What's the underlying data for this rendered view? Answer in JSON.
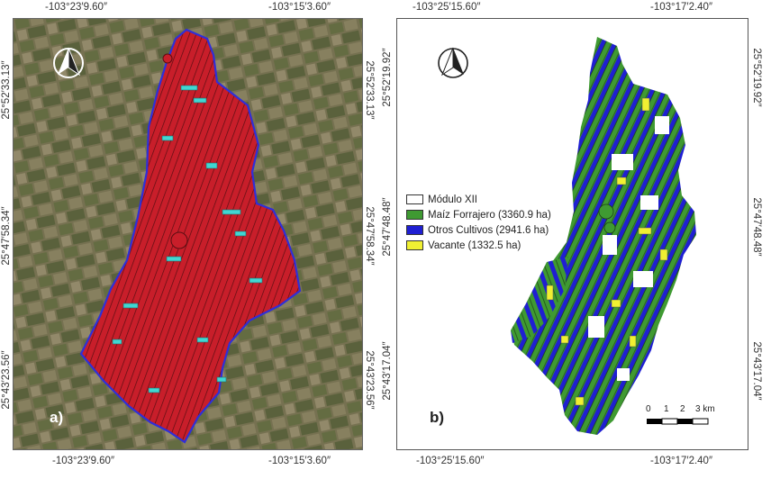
{
  "panel_a": {
    "label": "a)",
    "coords": {
      "top_left": "-103°23′9.60″",
      "top_right": "-103°15′3.60″",
      "bottom_left": "-103°23′9.60″",
      "bottom_right": "-103°15′3.60″",
      "left_upper": "25°52′33.13″",
      "left_middle": "25°47′58.34″",
      "left_lower": "25°43′23.56″",
      "right_upper": "25°52′33.13″",
      "right_middle": "25°47′58.34″",
      "right_lower": "25°43′23.56″"
    },
    "colors": {
      "boundary": "#2f2fd8",
      "parcel": "#c81e2a",
      "highlight": "#41d6d2"
    }
  },
  "panel_b": {
    "label": "b)",
    "coords": {
      "top_left": "-103°25′15.60″",
      "top_right": "-103°17′2.40″",
      "bottom_left": "-103°25′15.60″",
      "bottom_right": "-103°17′2.40″",
      "left_upper": "25°52′19.92″",
      "left_middle": "25°47′48.48″",
      "left_lower": "25°43′17.04″",
      "right_upper": "25°52′19.92″",
      "right_middle": "25°47′48.48″",
      "right_lower": "25°43′17.04″"
    },
    "legend": [
      {
        "label": "Módulo XII",
        "color": "#ffffff"
      },
      {
        "label": "Maíz Forrajero (3360.9 ha)",
        "color": "#3f9a32"
      },
      {
        "label": "Otros Cultivos (2941.6 ha)",
        "color": "#1f1fd2"
      },
      {
        "label": "Vacante (1332.5 ha)",
        "color": "#f0f032"
      }
    ],
    "scale_bar": {
      "ticks": [
        "0",
        "1",
        "2",
        "3 km"
      ]
    }
  }
}
